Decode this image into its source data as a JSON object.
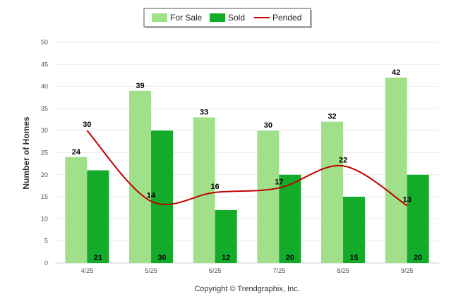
{
  "chart_data": {
    "type": "bar",
    "categories": [
      "4/25",
      "5/25",
      "6/25",
      "7/25",
      "8/25",
      "9/25"
    ],
    "series": [
      {
        "name": "For Sale",
        "kind": "bar",
        "color": "#a0e08a",
        "values": [
          24,
          39,
          33,
          30,
          32,
          42
        ]
      },
      {
        "name": "Sold",
        "kind": "bar",
        "color": "#12ab2a",
        "values": [
          21,
          30,
          12,
          20,
          15,
          20
        ]
      },
      {
        "name": "Pended",
        "kind": "line",
        "color": "#c00000",
        "values": [
          30,
          14,
          16,
          17,
          22,
          13
        ]
      }
    ],
    "title": "",
    "xlabel": "",
    "ylabel": "Number of Homes",
    "ylim": [
      0,
      50
    ],
    "yticks": [
      0,
      5,
      10,
      15,
      20,
      25,
      30,
      35,
      40,
      45,
      50
    ],
    "grid": true,
    "legend": "top-center",
    "footer": "Copyright © Trendgraphix, Inc."
  }
}
